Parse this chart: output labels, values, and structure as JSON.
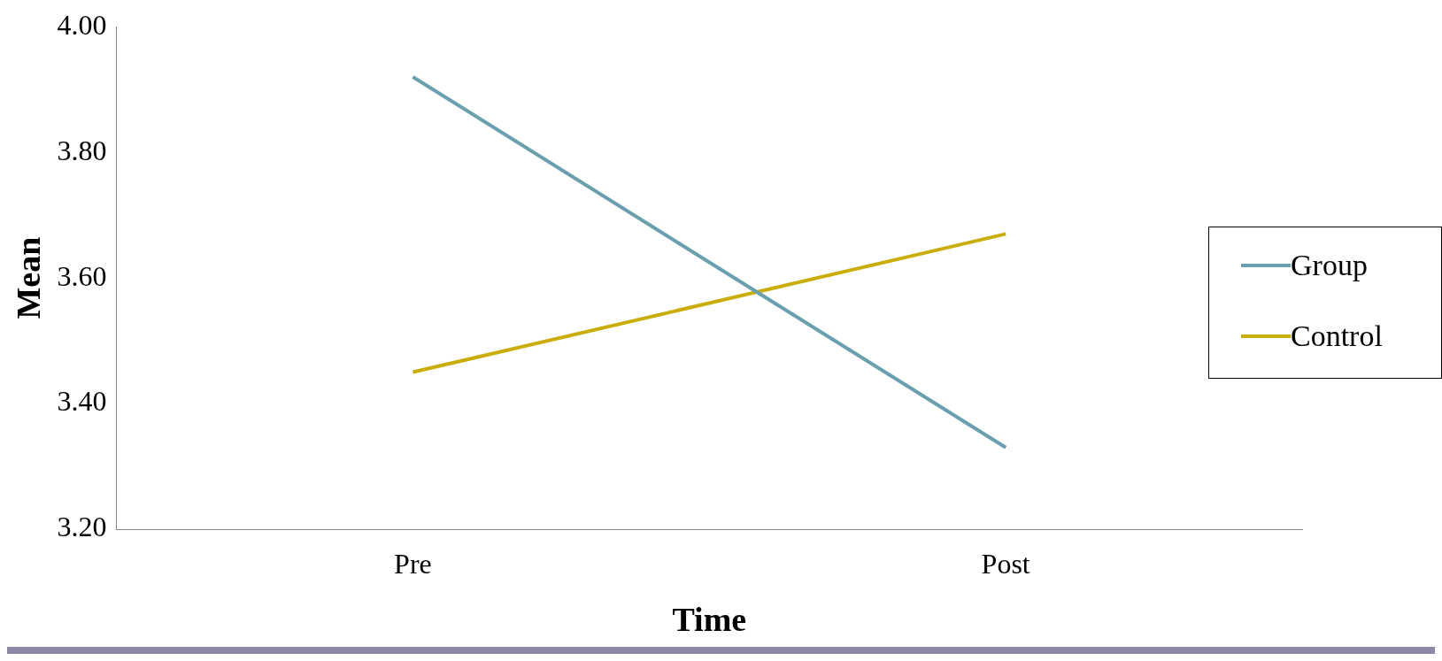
{
  "chart_data": {
    "type": "line",
    "xlabel": "Time",
    "ylabel": "Mean",
    "categories": [
      "Pre",
      "Post"
    ],
    "series": [
      {
        "name": "Group",
        "color": "#6a9fb0",
        "values": [
          3.92,
          3.33
        ]
      },
      {
        "name": "Control",
        "color": "#c9ae0b",
        "values": [
          3.45,
          3.67
        ]
      }
    ],
    "ylim": [
      3.2,
      4.0
    ],
    "yticks": [
      {
        "value": 3.2,
        "label": "3.20"
      },
      {
        "value": 3.4,
        "label": "3.40"
      },
      {
        "value": 3.6,
        "label": "3.60"
      },
      {
        "value": 3.8,
        "label": "3.80"
      },
      {
        "value": 4.0,
        "label": "4.00"
      }
    ],
    "grid": false,
    "legend": "right",
    "marker": "none",
    "line_style": "solid"
  }
}
